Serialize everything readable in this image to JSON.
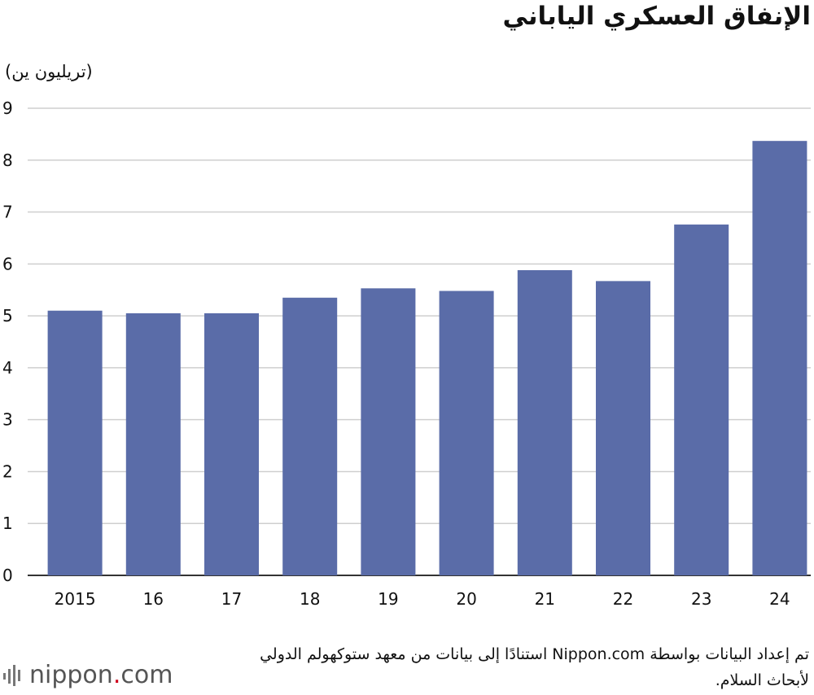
{
  "chart_data": {
    "type": "bar",
    "title": "الإنفاق العسكري الياباني",
    "ylabel": "(تريليون ين)",
    "xlabel": "",
    "categories": [
      "2015",
      "16",
      "17",
      "18",
      "19",
      "20",
      "21",
      "22",
      "23",
      "24"
    ],
    "values": [
      5.1,
      5.05,
      5.05,
      5.35,
      5.53,
      5.48,
      5.88,
      5.67,
      6.76,
      8.37
    ],
    "ylim": [
      0,
      9
    ],
    "yticks": [
      0,
      1,
      2,
      3,
      4,
      5,
      6,
      7,
      8,
      9
    ],
    "grid": true,
    "bar_color": "#5a6ca8"
  },
  "source": "تم إعداد البيانات بواسطة Nippon.com استنادًا إلى بيانات من معهد ستوكهولم الدولي لأبحاث السلام.",
  "logo": {
    "name": "nippon",
    "dot": ".",
    "suffix": "com"
  }
}
